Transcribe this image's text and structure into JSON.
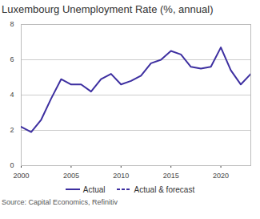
{
  "chart_data": {
    "type": "line",
    "title": "Luxembourg Unemployment Rate (%, annual)",
    "x": [
      2000,
      2001,
      2002,
      2003,
      2004,
      2005,
      2006,
      2007,
      2008,
      2009,
      2010,
      2011,
      2012,
      2013,
      2014,
      2015,
      2016,
      2017,
      2018,
      2019,
      2020,
      2021,
      2022,
      2023
    ],
    "series": [
      {
        "name": "Actual",
        "color": "#3d2fa0",
        "line_style": "solid",
        "values": [
          2.2,
          1.9,
          2.6,
          3.8,
          4.9,
          4.6,
          4.6,
          4.2,
          4.9,
          5.2,
          4.6,
          4.8,
          5.1,
          5.8,
          6.0,
          6.5,
          6.3,
          5.6,
          5.5,
          5.6,
          6.7,
          5.4,
          4.6,
          5.2
        ]
      },
      {
        "name": "Actual & forecast",
        "color": "#3d2fa0",
        "line_style": "dashed",
        "values": [
          null,
          null,
          null,
          null,
          null,
          null,
          null,
          null,
          null,
          null,
          null,
          null,
          null,
          null,
          null,
          null,
          null,
          null,
          null,
          null,
          null,
          null,
          null,
          null
        ]
      }
    ],
    "xlim": [
      2000,
      2023
    ],
    "xticks": [
      2000,
      2005,
      2010,
      2015,
      2020
    ],
    "ylim": [
      0,
      8
    ],
    "yticks": [
      0,
      2,
      4,
      6,
      8
    ],
    "grid": true,
    "legend": "bottom",
    "source": "Source: Capital Economics, Refinitiv"
  }
}
